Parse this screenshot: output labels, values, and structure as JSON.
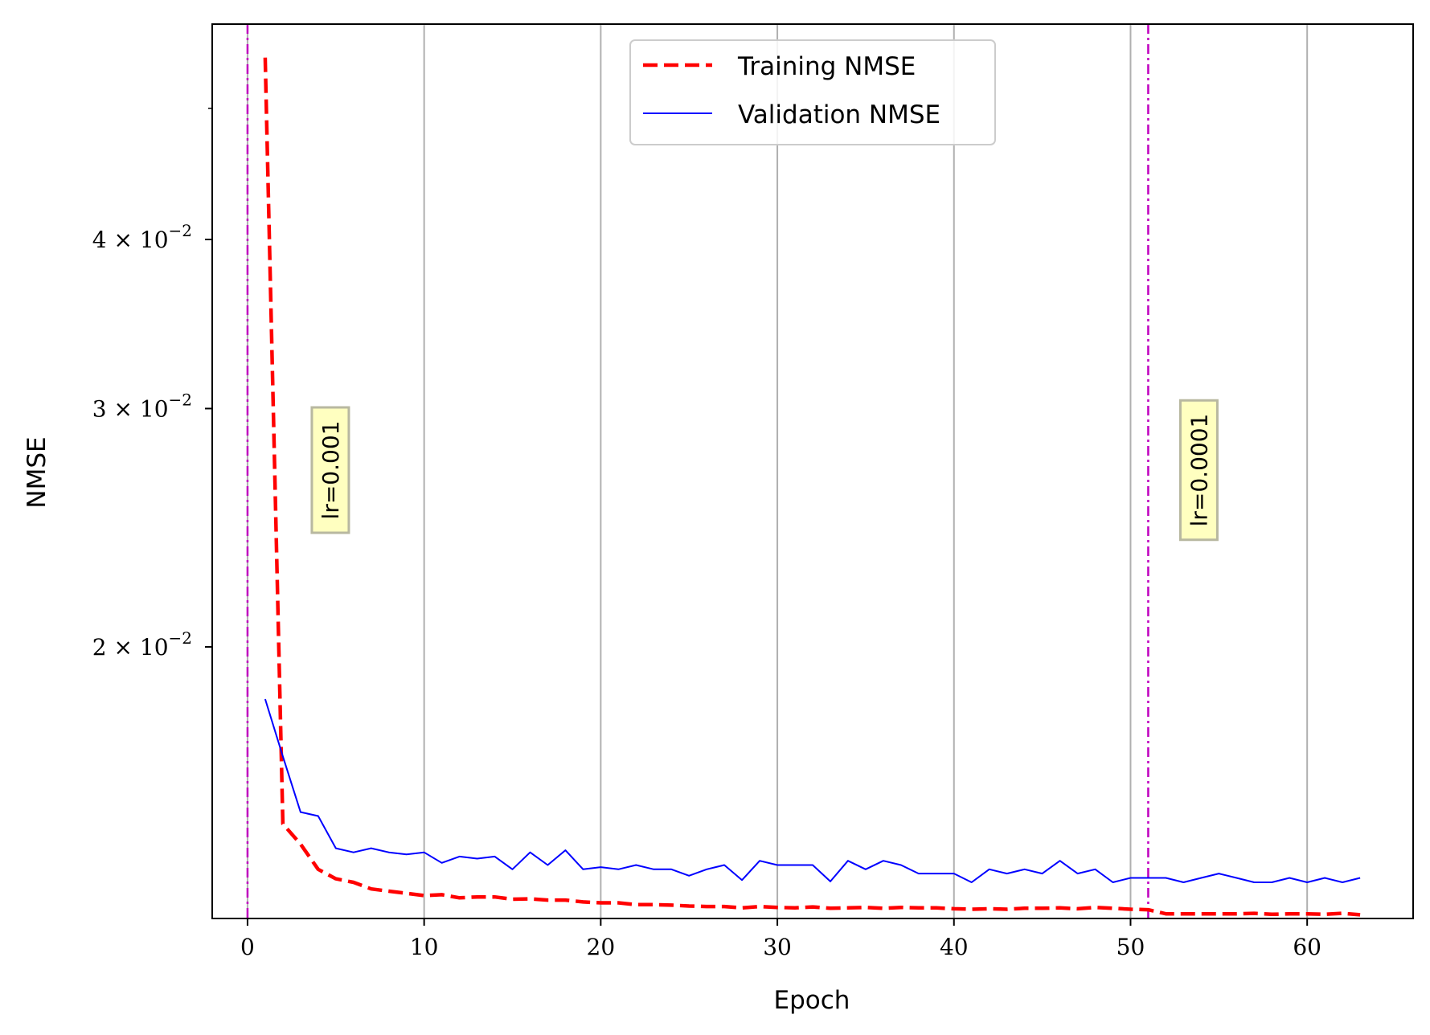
{
  "chart_data": {
    "type": "line",
    "title": "",
    "xlabel": "Epoch",
    "ylabel": "NMSE",
    "x_scale": "linear",
    "y_scale": "log",
    "xlim": [
      -2,
      66
    ],
    "ylim": [
      0.0126,
      0.0577
    ],
    "grid": "vertical only",
    "legend_position": "top-center",
    "x_ticks": [
      0,
      10,
      20,
      30,
      40,
      50,
      60
    ],
    "x_tick_labels": [
      "0",
      "10",
      "20",
      "30",
      "40",
      "50",
      "60"
    ],
    "y_ticks": [
      {
        "value": 0.02,
        "mantissa": "2",
        "exponent": "−2"
      },
      {
        "value": 0.03,
        "mantissa": "3",
        "exponent": "−2"
      },
      {
        "value": 0.04,
        "mantissa": "4",
        "exponent": "−2"
      }
    ],
    "y_minor_ticks": [
      0.05
    ],
    "series": [
      {
        "name": "Training NMSE",
        "color": "#ff0000",
        "style": "dashed",
        "x": [
          1,
          2,
          3,
          4,
          5,
          6,
          7,
          8,
          9,
          10,
          11,
          12,
          13,
          14,
          15,
          16,
          17,
          18,
          19,
          20,
          21,
          22,
          23,
          24,
          25,
          26,
          27,
          28,
          29,
          30,
          31,
          32,
          33,
          34,
          35,
          36,
          37,
          38,
          39,
          40,
          41,
          42,
          43,
          44,
          45,
          46,
          47,
          48,
          49,
          50,
          51,
          52,
          53,
          54,
          55,
          56,
          57,
          58,
          59,
          60,
          61,
          62,
          63
        ],
        "values": [
          0.0545,
          0.0148,
          0.0143,
          0.0137,
          0.01348,
          0.0134,
          0.01325,
          0.0132,
          0.01315,
          0.0131,
          0.01312,
          0.01305,
          0.01307,
          0.01307,
          0.01302,
          0.01303,
          0.013,
          0.013,
          0.01296,
          0.01294,
          0.01294,
          0.0129,
          0.0129,
          0.01289,
          0.01287,
          0.01286,
          0.01286,
          0.01283,
          0.01286,
          0.01284,
          0.01283,
          0.01285,
          0.01282,
          0.01283,
          0.01284,
          0.01282,
          0.01284,
          0.01283,
          0.01283,
          0.01281,
          0.0128,
          0.01281,
          0.0128,
          0.01282,
          0.01282,
          0.01283,
          0.01281,
          0.01284,
          0.01282,
          0.0128,
          0.01279,
          0.0127,
          0.0127,
          0.0127,
          0.0127,
          0.0127,
          0.01271,
          0.01269,
          0.0127,
          0.0127,
          0.01269,
          0.01271,
          0.01268
        ]
      },
      {
        "name": "Validation NMSE",
        "color": "#0000ff",
        "style": "solid",
        "x": [
          1,
          2,
          3,
          4,
          5,
          6,
          7,
          8,
          9,
          10,
          11,
          12,
          13,
          14,
          15,
          16,
          17,
          18,
          19,
          20,
          21,
          22,
          23,
          24,
          25,
          26,
          27,
          28,
          29,
          30,
          31,
          32,
          33,
          34,
          35,
          36,
          37,
          38,
          39,
          40,
          41,
          42,
          43,
          44,
          45,
          46,
          47,
          48,
          49,
          50,
          51,
          52,
          53,
          54,
          55,
          56,
          57,
          58,
          59,
          60,
          61,
          62,
          63
        ],
        "values": [
          0.0183,
          0.0166,
          0.0151,
          0.015,
          0.0142,
          0.0141,
          0.0142,
          0.0141,
          0.01405,
          0.0141,
          0.01385,
          0.014,
          0.01395,
          0.014,
          0.0137,
          0.0141,
          0.0138,
          0.01415,
          0.0137,
          0.01375,
          0.0137,
          0.0138,
          0.0137,
          0.0137,
          0.01355,
          0.0137,
          0.0138,
          0.01345,
          0.0139,
          0.0138,
          0.0138,
          0.0138,
          0.01342,
          0.0139,
          0.0137,
          0.0139,
          0.0138,
          0.0136,
          0.0136,
          0.0136,
          0.0134,
          0.0137,
          0.0136,
          0.0137,
          0.0136,
          0.0139,
          0.0136,
          0.0137,
          0.0134,
          0.0135,
          0.0135,
          0.0135,
          0.0134,
          0.0135,
          0.0136,
          0.0135,
          0.0134,
          0.0134,
          0.0135,
          0.0134,
          0.0135,
          0.0134,
          0.0135
        ]
      }
    ],
    "vlines": [
      {
        "x": 0,
        "color": "#bf00bf",
        "style": "dashdot",
        "label": "lr=0.001"
      },
      {
        "x": 51,
        "color": "#bf00bf",
        "style": "dashdot",
        "label": "lr=0.0001"
      }
    ]
  }
}
